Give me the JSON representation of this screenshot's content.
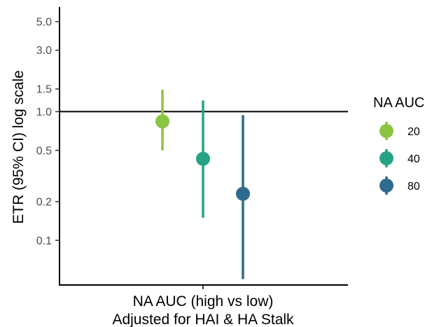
{
  "chart_data": {
    "type": "scatter",
    "title": "",
    "xlabel_lines": [
      "NA AUC (high vs low)",
      "Adjusted for HAI & HA Stalk"
    ],
    "ylabel": "ETR (95% CI) log scale",
    "y_scale": "log",
    "ylim": [
      0.045,
      6.5
    ],
    "y_ticks": [
      0.1,
      0.2,
      0.5,
      1.0,
      1.5,
      3.0,
      5.0
    ],
    "y_tick_labels": [
      "0.1",
      "0.2",
      "0.5",
      "1.0",
      "1.5",
      "3.0",
      "5.0"
    ],
    "reference_line": 1.0,
    "grid": false,
    "legend": {
      "title": "NA AUC",
      "position": "right"
    },
    "series": [
      {
        "name": "20",
        "estimate": 0.84,
        "ci_low": 0.5,
        "ci_high": 1.48,
        "color": "#8bc442"
      },
      {
        "name": "40",
        "estimate": 0.43,
        "ci_low": 0.15,
        "ci_high": 1.22,
        "color": "#26a385"
      },
      {
        "name": "80",
        "estimate": 0.23,
        "ci_low": 0.05,
        "ci_high": 0.94,
        "color": "#2f6b8e"
      }
    ]
  }
}
